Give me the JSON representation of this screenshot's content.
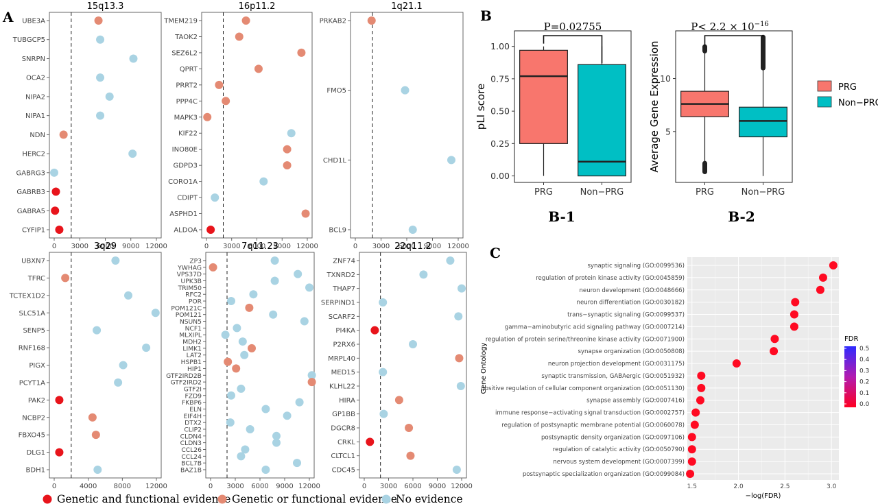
{
  "panel_labels": {
    "a": "A",
    "b": "B",
    "c": "C",
    "b1": "B-1",
    "b2": "B-2"
  },
  "legend_a": {
    "items": [
      {
        "label": "Genetic and functional evidence",
        "color": "#e8141b"
      },
      {
        "label": "Genetic or functional evidence",
        "color": "#e48a73"
      },
      {
        "label": "No evidence",
        "color": "#a9d3e3"
      }
    ]
  },
  "legend_b": {
    "items": [
      {
        "label": "PRG",
        "color": "#f8766d"
      },
      {
        "label": "Non−PRG",
        "color": "#00bfc4"
      }
    ]
  },
  "chart_data": [
    {
      "id": "A-15q13.3",
      "type": "scatter",
      "title": "15q13.3",
      "xticks": [
        "0",
        "3000",
        "6000",
        "9000",
        "12000"
      ],
      "xlim": [
        0,
        12000
      ],
      "cutoff": 2000,
      "genes": [
        {
          "name": "UBE3A",
          "x": 5200,
          "evidence": "single"
        },
        {
          "name": "TUBGCP5",
          "x": 5400,
          "evidence": "none"
        },
        {
          "name": "SNRPN",
          "x": 9300,
          "evidence": "none"
        },
        {
          "name": "OCA2",
          "x": 5400,
          "evidence": "none"
        },
        {
          "name": "NIPA2",
          "x": 6500,
          "evidence": "none"
        },
        {
          "name": "NIPA1",
          "x": 5400,
          "evidence": "none"
        },
        {
          "name": "NDN",
          "x": 1100,
          "evidence": "single"
        },
        {
          "name": "HERC2",
          "x": 9200,
          "evidence": "none"
        },
        {
          "name": "GABRG3",
          "x": 0,
          "evidence": "none"
        },
        {
          "name": "GABRB3",
          "x": 200,
          "evidence": "both"
        },
        {
          "name": "GABRA5",
          "x": 100,
          "evidence": "both"
        },
        {
          "name": "CYFIP1",
          "x": 600,
          "evidence": "both"
        }
      ]
    },
    {
      "id": "A-16p11.2",
      "type": "scatter",
      "title": "16p11.2",
      "xticks": [
        "0",
        "3000",
        "6000",
        "9000",
        "12000"
      ],
      "xlim": [
        0,
        12000
      ],
      "cutoff": 2000,
      "genes": [
        {
          "name": "TMEM219",
          "x": 4700,
          "evidence": "single"
        },
        {
          "name": "TAOK2",
          "x": 3900,
          "evidence": "single"
        },
        {
          "name": "SEZ6L2",
          "x": 11300,
          "evidence": "single"
        },
        {
          "name": "QPRT",
          "x": 6200,
          "evidence": "single"
        },
        {
          "name": "PRRT2",
          "x": 1500,
          "evidence": "single"
        },
        {
          "name": "PPP4C",
          "x": 2300,
          "evidence": "single"
        },
        {
          "name": "MAPK3",
          "x": 100,
          "evidence": "single"
        },
        {
          "name": "KIF22",
          "x": 10100,
          "evidence": "none"
        },
        {
          "name": "INO80E",
          "x": 9600,
          "evidence": "single"
        },
        {
          "name": "GDPD3",
          "x": 9600,
          "evidence": "single"
        },
        {
          "name": "CORO1A",
          "x": 6800,
          "evidence": "none"
        },
        {
          "name": "CDIPT",
          "x": 1000,
          "evidence": "none"
        },
        {
          "name": "ASPHD1",
          "x": 11800,
          "evidence": "single"
        },
        {
          "name": "ALDOA",
          "x": 500,
          "evidence": "both"
        }
      ]
    },
    {
      "id": "A-1q21.1",
      "type": "scatter",
      "title": "1q21.1",
      "xticks": [
        "0",
        "3000",
        "6000",
        "9000",
        "12000"
      ],
      "xlim": [
        0,
        12000
      ],
      "cutoff": 2000,
      "genes": [
        {
          "name": "PRKAB2",
          "x": 1900,
          "evidence": "single"
        },
        {
          "name": "FMO5",
          "x": 5800,
          "evidence": "none"
        },
        {
          "name": "CHD1L",
          "x": 11200,
          "evidence": "none"
        },
        {
          "name": "BCL9",
          "x": 6700,
          "evidence": "none"
        }
      ]
    },
    {
      "id": "A-3q29",
      "type": "scatter",
      "title": "3q29",
      "xticks": [
        "0",
        "4000",
        "8000",
        "12000"
      ],
      "xlim": [
        0,
        12000
      ],
      "cutoff": 2000,
      "genes": [
        {
          "name": "UBXN7",
          "x": 7200,
          "evidence": "none"
        },
        {
          "name": "TFRC",
          "x": 1300,
          "evidence": "single"
        },
        {
          "name": "TCTEX1D2",
          "x": 8700,
          "evidence": "none"
        },
        {
          "name": "SLC51A",
          "x": 11900,
          "evidence": "none"
        },
        {
          "name": "SENP5",
          "x": 5000,
          "evidence": "none"
        },
        {
          "name": "RNF168",
          "x": 10800,
          "evidence": "none"
        },
        {
          "name": "PIGX",
          "x": 8100,
          "evidence": "none"
        },
        {
          "name": "PCYT1A",
          "x": 7500,
          "evidence": "none"
        },
        {
          "name": "PAK2",
          "x": 600,
          "evidence": "both"
        },
        {
          "name": "NCBP2",
          "x": 4500,
          "evidence": "single"
        },
        {
          "name": "FBXO45",
          "x": 4900,
          "evidence": "single"
        },
        {
          "name": "DLG1",
          "x": 600,
          "evidence": "both"
        },
        {
          "name": "BDH1",
          "x": 5100,
          "evidence": "none"
        }
      ]
    },
    {
      "id": "A-7q11.23",
      "type": "scatter",
      "title": "7q11.23",
      "xticks": [
        "0",
        "3000",
        "6000",
        "9000",
        "12000"
      ],
      "xlim": [
        0,
        12000
      ],
      "cutoff": 2000,
      "genes": [
        {
          "name": "ZP3",
          "x": 7800,
          "evidence": "none"
        },
        {
          "name": "YWHAG",
          "x": 300,
          "evidence": "single"
        },
        {
          "name": "VPS37D",
          "x": 10600,
          "evidence": "none"
        },
        {
          "name": "UPK3B",
          "x": 7800,
          "evidence": "none"
        },
        {
          "name": "TRIM50",
          "x": 12000,
          "evidence": "none"
        },
        {
          "name": "RFC2",
          "x": 5200,
          "evidence": "none"
        },
        {
          "name": "POR",
          "x": 2500,
          "evidence": "none"
        },
        {
          "name": "POM121C",
          "x": 4700,
          "evidence": "single"
        },
        {
          "name": "POM121",
          "x": 7600,
          "evidence": "none"
        },
        {
          "name": "NSUN5",
          "x": 11400,
          "evidence": "none"
        },
        {
          "name": "NCF1",
          "x": 3200,
          "evidence": "none"
        },
        {
          "name": "MLXIPL",
          "x": 1800,
          "evidence": "none"
        },
        {
          "name": "MDH2",
          "x": 3900,
          "evidence": "none"
        },
        {
          "name": "LIMK1",
          "x": 5000,
          "evidence": "single"
        },
        {
          "name": "LAT2",
          "x": 4100,
          "evidence": "none"
        },
        {
          "name": "HSPB1",
          "x": 2100,
          "evidence": "single"
        },
        {
          "name": "HIP1",
          "x": 3100,
          "evidence": "single"
        },
        {
          "name": "GTF2IRD2B",
          "x": 12300,
          "evidence": "none"
        },
        {
          "name": "GTF2IRD2",
          "x": 12300,
          "evidence": "single"
        },
        {
          "name": "GTF2I",
          "x": 3700,
          "evidence": "none"
        },
        {
          "name": "FZD9",
          "x": 2500,
          "evidence": "none"
        },
        {
          "name": "FKBP6",
          "x": 10800,
          "evidence": "none"
        },
        {
          "name": "ELN",
          "x": 6700,
          "evidence": "none"
        },
        {
          "name": "EIF4H",
          "x": 9300,
          "evidence": "none"
        },
        {
          "name": "DTX2",
          "x": 2400,
          "evidence": "none"
        },
        {
          "name": "CLIP2",
          "x": 4800,
          "evidence": "none"
        },
        {
          "name": "CLDN4",
          "x": 8000,
          "evidence": "none"
        },
        {
          "name": "CLDN3",
          "x": 8000,
          "evidence": "none"
        },
        {
          "name": "CCL26",
          "x": 4200,
          "evidence": "none"
        },
        {
          "name": "CCL24",
          "x": 3700,
          "evidence": "none"
        },
        {
          "name": "BCL7B",
          "x": 10500,
          "evidence": "none"
        },
        {
          "name": "BAZ1B",
          "x": 6700,
          "evidence": "none"
        }
      ]
    },
    {
      "id": "A-22q11.2",
      "type": "scatter",
      "title": "22q11.2",
      "xticks": [
        "0",
        "3000",
        "6000",
        "9000",
        "12000"
      ],
      "xlim": [
        0,
        12000
      ],
      "cutoff": 2000,
      "genes": [
        {
          "name": "ZNF74",
          "x": 10600,
          "evidence": "none"
        },
        {
          "name": "TXNRD2",
          "x": 7300,
          "evidence": "none"
        },
        {
          "name": "THAP7",
          "x": 12000,
          "evidence": "none"
        },
        {
          "name": "SERPIND1",
          "x": 2300,
          "evidence": "none"
        },
        {
          "name": "SCARF2",
          "x": 11600,
          "evidence": "none"
        },
        {
          "name": "PI4KA",
          "x": 1300,
          "evidence": "both"
        },
        {
          "name": "P2RX6",
          "x": 6000,
          "evidence": "none"
        },
        {
          "name": "MRPL40",
          "x": 11700,
          "evidence": "single"
        },
        {
          "name": "MED15",
          "x": 2300,
          "evidence": "none"
        },
        {
          "name": "KLHL22",
          "x": 11900,
          "evidence": "none"
        },
        {
          "name": "HIRA",
          "x": 4300,
          "evidence": "single"
        },
        {
          "name": "GP1BB",
          "x": 2400,
          "evidence": "none"
        },
        {
          "name": "DGCR8",
          "x": 5500,
          "evidence": "single"
        },
        {
          "name": "CRKL",
          "x": 700,
          "evidence": "both"
        },
        {
          "name": "CLTCL1",
          "x": 5700,
          "evidence": "single"
        },
        {
          "name": "CDC45",
          "x": 11400,
          "evidence": "none"
        }
      ]
    },
    {
      "id": "B-1",
      "type": "box",
      "ylabel": "pLI score",
      "categories": [
        "PRG",
        "Non−PRG"
      ],
      "yticks": [
        "0.00",
        "0.25",
        "0.50",
        "0.75",
        "1.00"
      ],
      "ylim": [
        -0.05,
        1.12
      ],
      "pvalue": "P=0.02755",
      "boxes": [
        {
          "name": "PRG",
          "min": 0.0,
          "q1": 0.25,
          "median": 0.77,
          "q3": 0.97,
          "max": 1.0
        },
        {
          "name": "Non−PRG",
          "min": 0.0,
          "q1": 0.0,
          "median": 0.11,
          "q3": 0.86,
          "max": 1.0
        }
      ]
    },
    {
      "id": "B-2",
      "type": "box",
      "ylabel": "Average Gene Expression",
      "categories": [
        "PRG",
        "Non−PRG"
      ],
      "yticks": [
        "5",
        "10"
      ],
      "ylim": [
        0.2,
        14.5
      ],
      "pvalue_prefix": "P< 2.2 × 10",
      "pvalue_exp": "−16",
      "boxes": [
        {
          "name": "PRG",
          "min": 2.2,
          "q1": 6.4,
          "median": 7.6,
          "q3": 8.8,
          "max": 12.8,
          "outliers_low": [
            1.2,
            2.0
          ],
          "outliers_high": [
            12.6,
            13.0
          ]
        },
        {
          "name": "Non−PRG",
          "min": 0.8,
          "q1": 4.5,
          "median": 6.0,
          "q3": 7.3,
          "max": 10.9,
          "outliers_low": [],
          "outliers_high": [
            11.0,
            13.9
          ]
        }
      ]
    },
    {
      "id": "C",
      "type": "scatter",
      "xlabel": "−log(FDR)",
      "ylabel": "Gene Ontology",
      "xticks": [
        "1.5",
        "2.0",
        "2.5",
        "3.0"
      ],
      "xlim": [
        1.45,
        3.08
      ],
      "color_legend": {
        "title": "FDR",
        "ticks": [
          "0.5",
          "0.4",
          "0.3",
          "0.2",
          "0.1",
          "0.0"
        ]
      },
      "terms": [
        {
          "label": "synaptic signaling (GO:0099536)",
          "x": 3.02
        },
        {
          "label": "regulation of protein kinase activity (GO:0045859)",
          "x": 2.91
        },
        {
          "label": "neuron development (GO:0048666)",
          "x": 2.88
        },
        {
          "label": "neuron differentiation (GO:0030182)",
          "x": 2.61
        },
        {
          "label": "trans−synaptic signaling (GO:0099537)",
          "x": 2.6
        },
        {
          "label": "gamma−aminobutyric acid signaling pathway (GO:0007214)",
          "x": 2.6
        },
        {
          "label": "regulation of protein serine/threonine kinase activity (GO:0071900)",
          "x": 2.39
        },
        {
          "label": "synapse organization (GO:0050808)",
          "x": 2.38
        },
        {
          "label": "neuron projection development (GO:0031175)",
          "x": 1.98
        },
        {
          "label": "synaptic transmission, GABAergic (GO:0051932)",
          "x": 1.6
        },
        {
          "label": "positive regulation of cellular component organization (GO:0051130)",
          "x": 1.6
        },
        {
          "label": "synapse assembly (GO:0007416)",
          "x": 1.59
        },
        {
          "label": "immune response−activating signal transduction (GO:0002757)",
          "x": 1.54
        },
        {
          "label": "regulation of postsynaptic membrane potential (GO:0060078)",
          "x": 1.53
        },
        {
          "label": "postsynaptic density organization (GO:0097106)",
          "x": 1.5
        },
        {
          "label": "regulation of catalytic activity (GO:0050790)",
          "x": 1.5
        },
        {
          "label": "nervous system development (GO:0007399)",
          "x": 1.5
        },
        {
          "label": "postsynaptic specialization organization (GO:0099084)",
          "x": 1.48
        }
      ]
    }
  ]
}
